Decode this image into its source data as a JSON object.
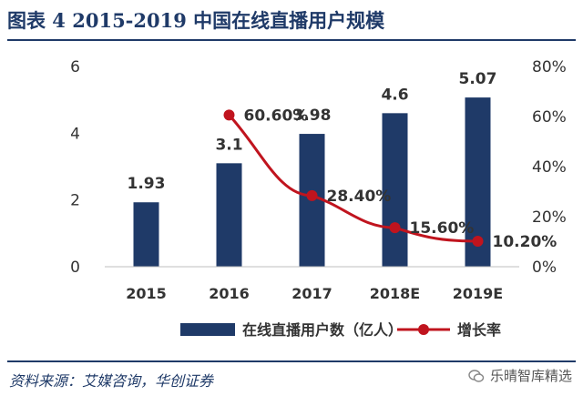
{
  "title": "图表 4   2015-2019 中国在线直播用户规模",
  "source": "资料来源：艾媒咨询，华创证券",
  "watermark": {
    "text": "乐晴智库精选",
    "icon": "wechat-icon"
  },
  "colors": {
    "bar": "#1f3a68",
    "line": "#c0141e",
    "text": "#333333",
    "title": "#1f3a68"
  },
  "chart_data": {
    "type": "bar",
    "categories": [
      "2015",
      "2016",
      "2017",
      "2018E",
      "2019E"
    ],
    "series": [
      {
        "name": "在线直播用户数（亿人）",
        "type": "bar",
        "axis": "left",
        "values": [
          1.93,
          3.1,
          3.98,
          4.6,
          5.07
        ],
        "labels": [
          "1.93",
          "3.1",
          "3.98",
          "4.6",
          "5.07"
        ]
      },
      {
        "name": "增长率",
        "type": "line",
        "axis": "right",
        "values": [
          null,
          60.6,
          28.4,
          15.6,
          10.2
        ],
        "labels": [
          "",
          "60.60%",
          "28.40%",
          "15.60%",
          "10.20%"
        ]
      }
    ],
    "y_left": {
      "range": [
        0,
        6
      ],
      "ticks": [
        "0",
        "2",
        "4",
        "6"
      ]
    },
    "y_right": {
      "range": [
        0,
        80
      ],
      "ticks": [
        "0%",
        "20%",
        "40%",
        "60%",
        "80%"
      ]
    },
    "grid": false,
    "legend_position": "bottom"
  }
}
